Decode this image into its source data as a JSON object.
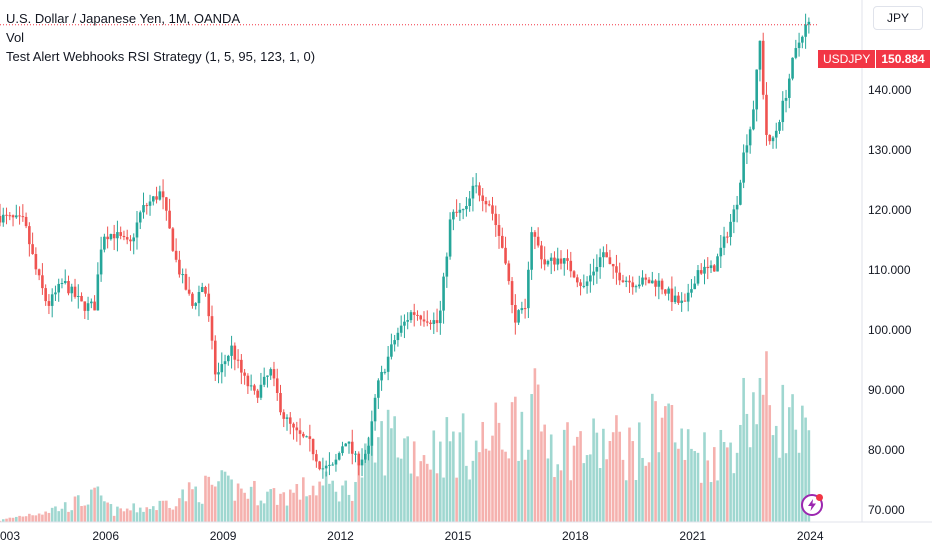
{
  "legend": {
    "title": "U.S. Dollar / Japanese Yen, 1M, OANDA",
    "vol": "Vol",
    "strategy": "Test Alert Webhooks RSI Strategy (1, 5, 95, 123, 1, 0)"
  },
  "currency_button": "JPY",
  "price_tag": {
    "symbol": "USDJPY",
    "value": "150.884"
  },
  "colors": {
    "up": "#26a69a",
    "down": "#ef5350",
    "vol_up": "#9fd7d0",
    "vol_down": "#f5b1ae",
    "price_line": "#f23645"
  },
  "chart_data": {
    "type": "candlestick",
    "x_tick_labels": [
      "003",
      "2006",
      "2009",
      "2012",
      "2015",
      "2018",
      "2021",
      "2024"
    ],
    "y_tick_labels": [
      "140.000",
      "130.000",
      "120.000",
      "110.000",
      "100.000",
      "90.000",
      "80.000",
      "70.000"
    ],
    "y_range": [
      68,
      155
    ],
    "x_range": [
      2003.3,
      2024.2
    ],
    "last_price": 150.884,
    "anchors": [
      [
        2003.3,
        119
      ],
      [
        2004.0,
        118
      ],
      [
        2004.3,
        110
      ],
      [
        2004.6,
        104
      ],
      [
        2005.0,
        108
      ],
      [
        2005.5,
        104
      ],
      [
        2005.8,
        104
      ],
      [
        2006.0,
        116
      ],
      [
        2006.3,
        116
      ],
      [
        2006.7,
        114
      ],
      [
        2007.0,
        120
      ],
      [
        2007.5,
        123
      ],
      [
        2007.9,
        111
      ],
      [
        2008.3,
        104
      ],
      [
        2008.6,
        108
      ],
      [
        2008.9,
        92
      ],
      [
        2009.3,
        97
      ],
      [
        2009.6,
        92
      ],
      [
        2009.9,
        89
      ],
      [
        2010.3,
        93
      ],
      [
        2010.6,
        86
      ],
      [
        2010.9,
        83
      ],
      [
        2011.3,
        81
      ],
      [
        2011.6,
        77
      ],
      [
        2011.9,
        77
      ],
      [
        2012.2,
        82
      ],
      [
        2012.5,
        78
      ],
      [
        2012.8,
        80
      ],
      [
        2013.0,
        90
      ],
      [
        2013.5,
        99
      ],
      [
        2013.9,
        103
      ],
      [
        2014.3,
        102
      ],
      [
        2014.6,
        101
      ],
      [
        2014.9,
        119
      ],
      [
        2015.3,
        120
      ],
      [
        2015.5,
        124
      ],
      [
        2015.9,
        121
      ],
      [
        2016.3,
        112
      ],
      [
        2016.5,
        102
      ],
      [
        2016.8,
        103
      ],
      [
        2016.95,
        117
      ],
      [
        2017.3,
        111
      ],
      [
        2017.7,
        112
      ],
      [
        2018.0,
        110
      ],
      [
        2018.3,
        107
      ],
      [
        2018.8,
        113
      ],
      [
        2019.0,
        110
      ],
      [
        2019.5,
        108
      ],
      [
        2019.8,
        108
      ],
      [
        2020.2,
        108
      ],
      [
        2020.6,
        105
      ],
      [
        2020.9,
        104
      ],
      [
        2021.2,
        110
      ],
      [
        2021.6,
        110
      ],
      [
        2021.9,
        115
      ],
      [
        2022.2,
        121
      ],
      [
        2022.4,
        130
      ],
      [
        2022.6,
        135
      ],
      [
        2022.8,
        148
      ],
      [
        2022.9,
        138
      ],
      [
        2023.0,
        130
      ],
      [
        2023.2,
        133
      ],
      [
        2023.45,
        139
      ],
      [
        2023.65,
        145
      ],
      [
        2023.9,
        150
      ],
      [
        2024.0,
        150.9
      ]
    ],
    "volume_heights": [
      [
        2003.3,
        0.3
      ],
      [
        2005.0,
        3
      ],
      [
        2005.8,
        5
      ],
      [
        2006.2,
        2
      ],
      [
        2007.3,
        3
      ],
      [
        2008.3,
        6
      ],
      [
        2008.9,
        7
      ],
      [
        2009.5,
        6
      ],
      [
        2010.5,
        5
      ],
      [
        2011.5,
        7
      ],
      [
        2012.2,
        6
      ],
      [
        2012.7,
        12
      ],
      [
        2013.3,
        17
      ],
      [
        2014.0,
        13
      ],
      [
        2014.8,
        15
      ],
      [
        2015.5,
        14
      ],
      [
        2016.3,
        18
      ],
      [
        2016.8,
        22
      ],
      [
        2017.5,
        15
      ],
      [
        2018.3,
        14
      ],
      [
        2019.0,
        15
      ],
      [
        2019.8,
        13
      ],
      [
        2020.2,
        24
      ],
      [
        2020.7,
        14
      ],
      [
        2021.3,
        13
      ],
      [
        2021.9,
        14
      ],
      [
        2022.3,
        21
      ],
      [
        2022.7,
        25
      ],
      [
        2023.0,
        22
      ],
      [
        2023.5,
        19
      ],
      [
        2023.9,
        15
      ],
      [
        2024.0,
        14
      ]
    ]
  }
}
